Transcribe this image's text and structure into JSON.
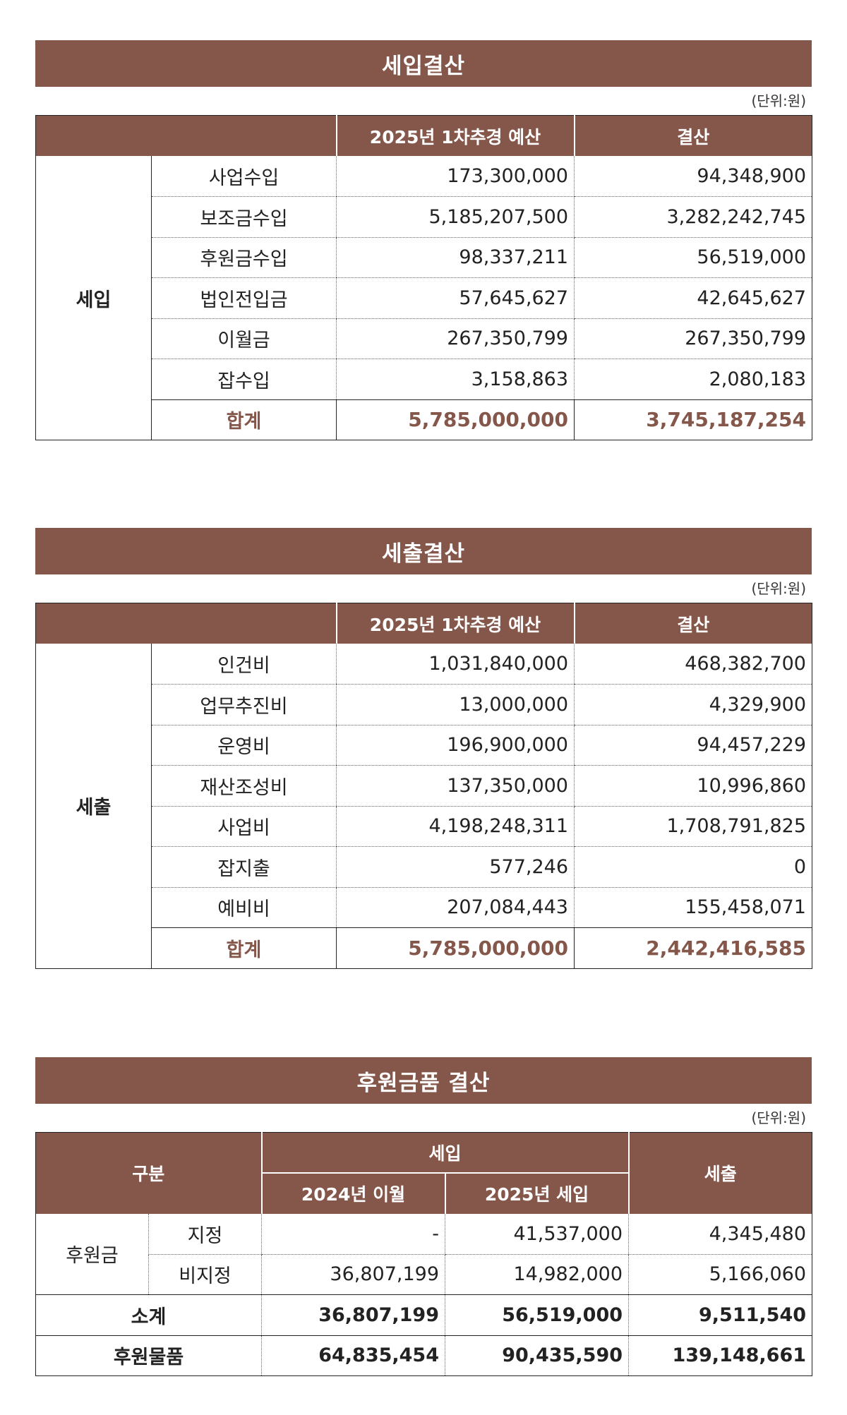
{
  "income": {
    "title": "세입결산",
    "unit": "(단위:원)",
    "headers": [
      "2025년 1차추경 예산",
      "결산"
    ],
    "category": "세입",
    "rows": [
      {
        "item": "사업수입",
        "budget": "173,300,000",
        "settled": "94,348,900"
      },
      {
        "item": "보조금수입",
        "budget": "5,185,207,500",
        "settled": "3,282,242,745"
      },
      {
        "item": "후원금수입",
        "budget": "98,337,211",
        "settled": "56,519,000"
      },
      {
        "item": "법인전입금",
        "budget": "57,645,627",
        "settled": "42,645,627"
      },
      {
        "item": "이월금",
        "budget": "267,350,799",
        "settled": "267,350,799"
      },
      {
        "item": "잡수입",
        "budget": "3,158,863",
        "settled": "2,080,183"
      }
    ],
    "total": {
      "item": "합계",
      "budget": "5,785,000,000",
      "settled": "3,745,187,254"
    }
  },
  "expense": {
    "title": "세출결산",
    "unit": "(단위:원)",
    "headers": [
      "2025년 1차추경 예산",
      "결산"
    ],
    "category": "세출",
    "rows": [
      {
        "item": "인건비",
        "budget": "1,031,840,000",
        "settled": "468,382,700"
      },
      {
        "item": "업무추진비",
        "budget": "13,000,000",
        "settled": "4,329,900"
      },
      {
        "item": "운영비",
        "budget": "196,900,000",
        "settled": "94,457,229"
      },
      {
        "item": "재산조성비",
        "budget": "137,350,000",
        "settled": "10,996,860"
      },
      {
        "item": "사업비",
        "budget": "4,198,248,311",
        "settled": "1,708,791,825"
      },
      {
        "item": "잡지출",
        "budget": "577,246",
        "settled": "0"
      },
      {
        "item": "예비비",
        "budget": "207,084,443",
        "settled": "155,458,071"
      }
    ],
    "total": {
      "item": "합계",
      "budget": "5,785,000,000",
      "settled": "2,442,416,585"
    }
  },
  "donation": {
    "title": "후원금품 결산",
    "unit": "(단위:원)",
    "header_division": "구분",
    "header_income": "세입",
    "header_prev": "2024년 이월",
    "header_curr": "2025년 세입",
    "header_expense": "세출",
    "group": "후원금",
    "rows": [
      {
        "item": "지정",
        "prev": "-",
        "curr": "41,537,000",
        "out": "4,345,480"
      },
      {
        "item": "비지정",
        "prev": "36,807,199",
        "curr": "14,982,000",
        "out": "5,166,060"
      }
    ],
    "subtotal": {
      "item": "소계",
      "prev": "36,807,199",
      "curr": "56,519,000",
      "out": "9,511,540"
    },
    "goods": {
      "item": "후원물품",
      "prev": "64,835,454",
      "curr": "90,435,590",
      "out": "139,148,661"
    }
  }
}
